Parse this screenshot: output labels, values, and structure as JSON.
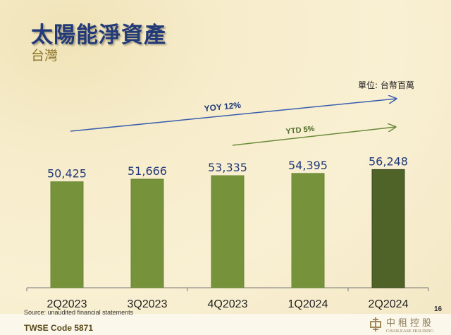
{
  "title": "太陽能淨資產",
  "subtitle": "台灣",
  "unit_label": "單位: 台幣百萬",
  "source": "Source: unaudited financial statements",
  "page_number": "16",
  "footer_code": "TWSE Code 5871",
  "logo": {
    "cn": "中租控股",
    "en": "CHAILEASE HOLDING"
  },
  "colors": {
    "bar": "#76933c",
    "bar_last": "#4f6228",
    "title": "#233a78",
    "yoy": "#3a5dae",
    "ytd": "#6b8a3a"
  },
  "chart_data": {
    "type": "bar",
    "categories": [
      "2Q2023",
      "3Q2023",
      "4Q2023",
      "1Q2024",
      "2Q2024"
    ],
    "values": [
      50425,
      51666,
      53335,
      54395,
      56248
    ],
    "value_labels": [
      "50,425",
      "51,666",
      "53,335",
      "54,395",
      "56,248"
    ],
    "ylim": [
      0,
      60000
    ],
    "annotations": [
      {
        "text": "YOY 12%",
        "from": "2Q2023",
        "to": "2Q2024"
      },
      {
        "text": "YTD 5%",
        "from": "4Q2023",
        "to": "2Q2024"
      }
    ]
  }
}
